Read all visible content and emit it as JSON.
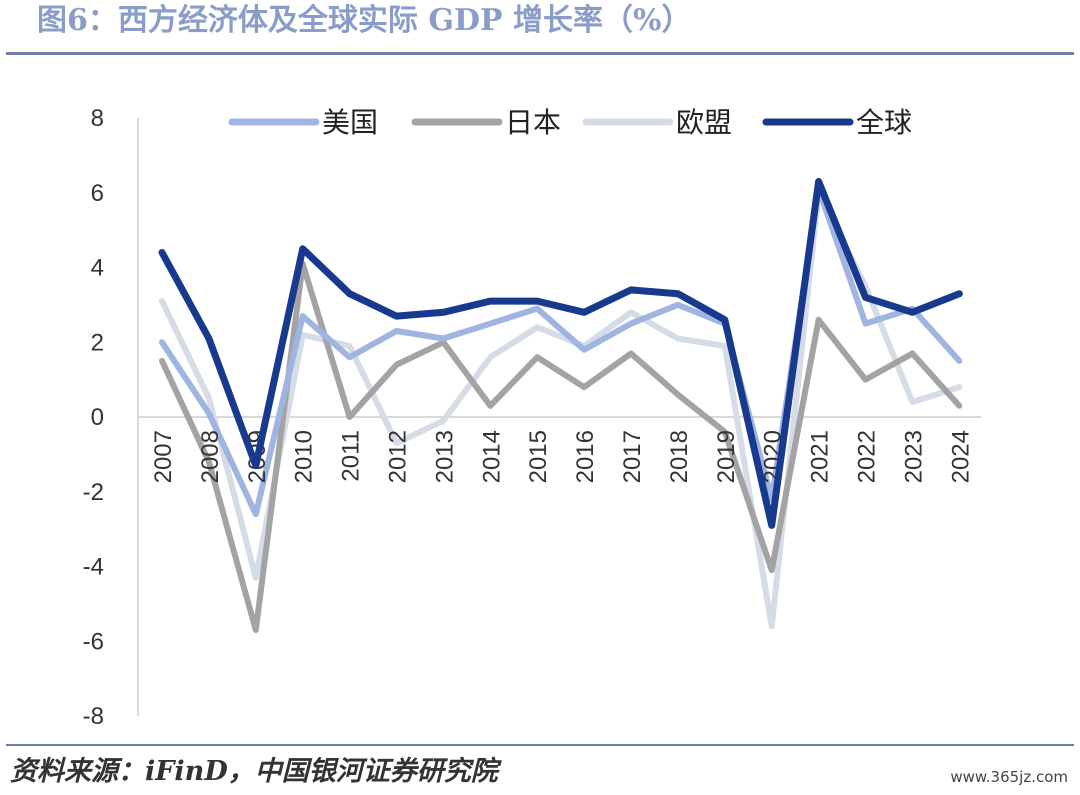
{
  "page": {
    "title": "图6：西方经济体及全球实际 GDP 增长率（%）",
    "source": "资料来源：iFinD，中国银河证券研究院",
    "watermark": "www.365jz.com"
  },
  "chart_data": {
    "type": "line",
    "title": "图6：西方经济体及全球实际 GDP 增长率（%）",
    "xlabel": "",
    "ylabel": "",
    "categories": [
      "2007",
      "2008",
      "2009",
      "2010",
      "2011",
      "2012",
      "2013",
      "2014",
      "2015",
      "2016",
      "2017",
      "2018",
      "2019",
      "2020",
      "2021",
      "2022",
      "2023",
      "2024"
    ],
    "ylim": [
      -8,
      8
    ],
    "yticks": [
      8,
      6,
      4,
      2,
      0,
      -2,
      -4,
      -6,
      -8
    ],
    "grid": false,
    "legend_position": "top",
    "series": [
      {
        "name": "美国",
        "color": "#9fb4e0",
        "values": [
          2.0,
          0.1,
          -2.6,
          2.7,
          1.6,
          2.3,
          2.1,
          2.5,
          2.9,
          1.8,
          2.5,
          3.0,
          2.5,
          -2.2,
          6.1,
          2.5,
          2.9,
          1.5
        ]
      },
      {
        "name": "日本",
        "color": "#a3a3a3",
        "values": [
          1.5,
          -1.2,
          -5.7,
          4.1,
          0.0,
          1.4,
          2.0,
          0.3,
          1.6,
          0.8,
          1.7,
          0.6,
          -0.4,
          -4.1,
          2.6,
          1.0,
          1.7,
          0.3
        ]
      },
      {
        "name": "欧盟",
        "color": "#d6dce6",
        "values": [
          3.1,
          0.5,
          -4.3,
          2.2,
          1.9,
          -0.7,
          -0.1,
          1.6,
          2.4,
          1.9,
          2.8,
          2.1,
          1.9,
          -5.6,
          6.0,
          3.5,
          0.4,
          0.8
        ]
      },
      {
        "name": "全球",
        "color": "#173a8f",
        "values": [
          4.4,
          2.1,
          -1.3,
          4.5,
          3.3,
          2.7,
          2.8,
          3.1,
          3.1,
          2.8,
          3.4,
          3.3,
          2.6,
          -2.9,
          6.3,
          3.2,
          2.8,
          3.3
        ]
      }
    ]
  }
}
